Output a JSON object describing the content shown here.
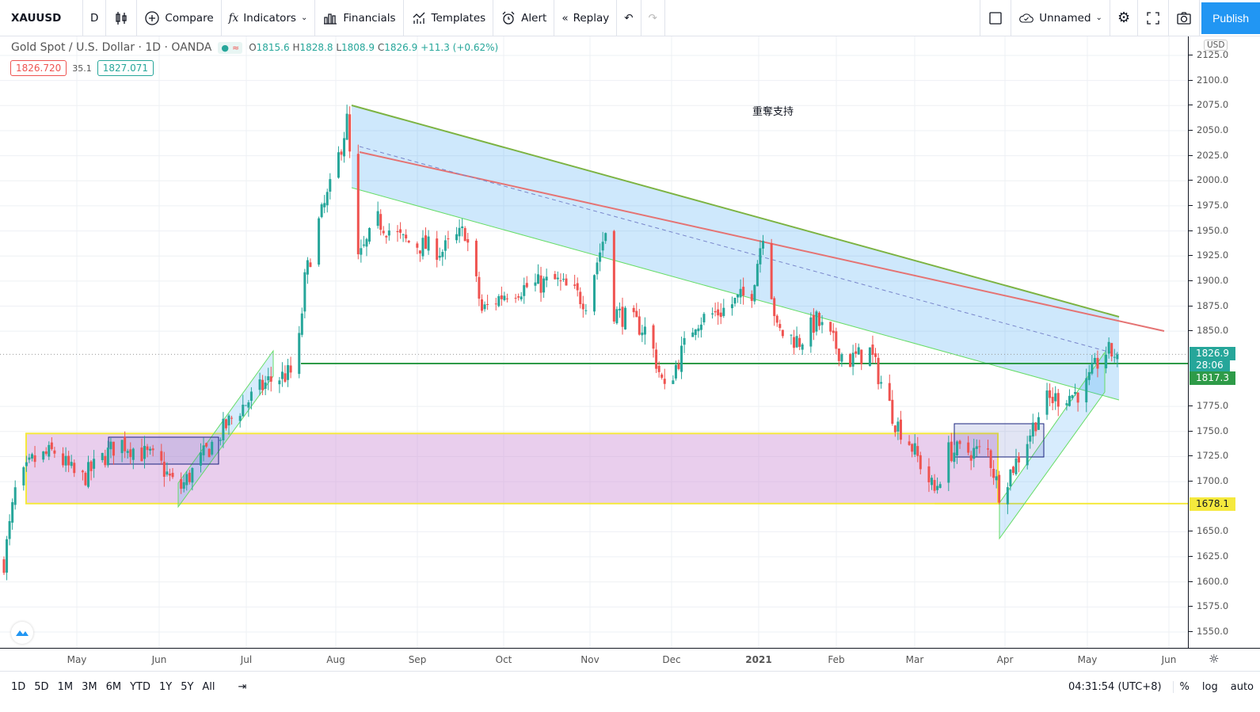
{
  "toolbar": {
    "symbol": "XAUUSD",
    "interval": "D",
    "compare": "Compare",
    "indicators": "Indicators",
    "financials": "Financials",
    "templates": "Templates",
    "alert": "Alert",
    "replay": "Replay",
    "layout_name": "Unnamed",
    "publish": "Publish"
  },
  "legend": {
    "title": "Gold Spot / U.S. Dollar · 1D · OANDA",
    "o_label": "O",
    "o": "1815.6",
    "h_label": "H",
    "h": "1828.8",
    "l_label": "L",
    "l": "1808.9",
    "c_label": "C",
    "c": "1826.9",
    "change": "+11.3 (+0.62%)",
    "bid": "1826.720",
    "spread": "35.1",
    "ask": "1827.071"
  },
  "annotation": "重奪支持",
  "price_axis": {
    "currency": "USD",
    "ticks": [
      "2125.0",
      "2100.0",
      "2075.0",
      "2050.0",
      "2025.0",
      "2000.0",
      "1975.0",
      "1950.0",
      "1925.0",
      "1900.0",
      "1875.0",
      "1850.0",
      "1775.0",
      "1750.0",
      "1725.0",
      "1700.0",
      "1650.0",
      "1625.0",
      "1600.0",
      "1575.0",
      "1550.0"
    ],
    "last_price": "1826.9",
    "countdown": "28:06",
    "line_price": "1817.3",
    "support_price": "1678.1"
  },
  "time_axis": {
    "labels": [
      "May",
      "Jun",
      "Jul",
      "Aug",
      "Sep",
      "Oct",
      "Nov",
      "Dec",
      "2021",
      "Feb",
      "Mar",
      "Apr",
      "May",
      "Jun"
    ]
  },
  "bottom": {
    "ranges": [
      "1D",
      "5D",
      "1M",
      "3M",
      "6M",
      "YTD",
      "1Y",
      "5Y",
      "All"
    ],
    "clock": "04:31:54 (UTC+8)",
    "percent": "%",
    "log": "log",
    "auto": "auto"
  },
  "colors": {
    "up": "#26a69a",
    "down": "#ef5350",
    "accent": "#2196f3"
  },
  "chart_data": {
    "type": "candlestick",
    "symbol": "XAUUSD",
    "ylim": [
      1535,
      2135
    ],
    "anchors_close": [
      [
        0,
        1620
      ],
      [
        4,
        1690
      ],
      [
        10,
        1720
      ],
      [
        18,
        1730
      ],
      [
        27,
        1700
      ],
      [
        41,
        1740
      ],
      [
        55,
        1720
      ],
      [
        62,
        1690
      ],
      [
        72,
        1730
      ],
      [
        83,
        1770
      ],
      [
        94,
        1800
      ],
      [
        104,
        1810
      ],
      [
        107,
        1900
      ],
      [
        111,
        1950
      ],
      [
        117,
        2000
      ],
      [
        122,
        2060
      ],
      [
        126,
        1920
      ],
      [
        133,
        1960
      ],
      [
        142,
        1940
      ],
      [
        156,
        1930
      ],
      [
        164,
        1950
      ],
      [
        170,
        1870
      ],
      [
        179,
        1890
      ],
      [
        196,
        1900
      ],
      [
        207,
        1880
      ],
      [
        214,
        1950
      ],
      [
        217,
        1870
      ],
      [
        229,
        1850
      ],
      [
        235,
        1790
      ],
      [
        246,
        1860
      ],
      [
        255,
        1870
      ],
      [
        266,
        1890
      ],
      [
        270,
        1950
      ],
      [
        275,
        1850
      ],
      [
        283,
        1840
      ],
      [
        289,
        1860
      ],
      [
        300,
        1820
      ],
      [
        308,
        1830
      ],
      [
        317,
        1760
      ],
      [
        322,
        1740
      ],
      [
        331,
        1690
      ],
      [
        336,
        1730
      ],
      [
        350,
        1730
      ],
      [
        354,
        1690
      ],
      [
        362,
        1730
      ],
      [
        370,
        1780
      ],
      [
        384,
        1790
      ],
      [
        391,
        1830
      ],
      [
        396,
        1826.9
      ]
    ]
  }
}
